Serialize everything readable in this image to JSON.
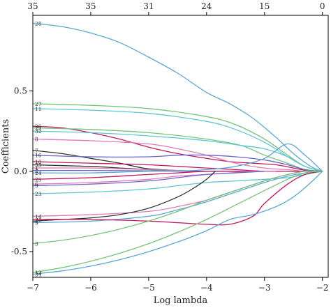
{
  "chart_data": {
    "type": "line",
    "xlabel": "Log lambda",
    "ylabel": "Coefficients",
    "xlim": [
      -7.0,
      -1.9
    ],
    "ylim": [
      -0.66,
      0.97
    ],
    "x_ticks": [
      -7,
      -6,
      -5,
      -4,
      -3,
      -2
    ],
    "y_ticks": [
      -0.5,
      0.0,
      0.5
    ],
    "y_tick_labels": [
      "-0.5",
      "0.0",
      "0.5"
    ],
    "top_axis": {
      "ticks": [
        -7,
        -6,
        -5,
        -4,
        -3,
        -2
      ],
      "labels": [
        "35",
        "35",
        "31",
        "24",
        "15",
        "0"
      ]
    },
    "grid": false,
    "legend": "none",
    "colors": [
      "#5aa7d6",
      "#74c476",
      "#e07ab8",
      "#5ec7d0",
      "#333333",
      "#c2185b",
      "#6a64c8"
    ],
    "series": [
      {
        "name": "28",
        "color": "#5aa7d6",
        "x": [
          -7,
          -6.5,
          -6,
          -5.5,
          -5,
          -4.5,
          -4,
          -3.6,
          -3.2,
          -2.8,
          -2.5,
          -2.2,
          -2.0
        ],
        "y": [
          0.92,
          0.9,
          0.86,
          0.8,
          0.71,
          0.61,
          0.49,
          0.42,
          0.33,
          0.21,
          0.11,
          0.03,
          0.0
        ]
      },
      {
        "name": "27",
        "color": "#74c476",
        "x": [
          -7,
          -6,
          -5,
          -4,
          -3.5,
          -3,
          -2.6,
          -2.3,
          -2.0
        ],
        "y": [
          0.42,
          0.41,
          0.39,
          0.34,
          0.29,
          0.2,
          0.1,
          0.03,
          0.0
        ]
      },
      {
        "name": "11",
        "color": "#5ec7d0",
        "x": [
          -7,
          -6,
          -5,
          -4,
          -3.5,
          -3,
          -2.6,
          -2.3,
          -2.0
        ],
        "y": [
          0.39,
          0.38,
          0.36,
          0.31,
          0.26,
          0.18,
          0.09,
          0.03,
          0.0
        ]
      },
      {
        "name": "26",
        "color": "#c2185b",
        "x": [
          -7,
          -6.5,
          -6,
          -5.5,
          -5,
          -4.5,
          -4,
          -3.6,
          -3.2,
          -2.8,
          -2.5,
          -2.2,
          -2.0
        ],
        "y": [
          0.28,
          0.27,
          0.24,
          0.2,
          0.15,
          0.11,
          0.08,
          0.06,
          0.05,
          0.04,
          0.02,
          0.0,
          0.0
        ]
      },
      {
        "name": "29",
        "color": "#74c476",
        "x": [
          -7,
          -6,
          -5,
          -4,
          -3.4,
          -3,
          -2.6,
          -2.3,
          -2.0
        ],
        "y": [
          0.27,
          0.26,
          0.24,
          0.2,
          0.16,
          0.1,
          0.05,
          0.01,
          0.0
        ]
      },
      {
        "name": "32",
        "color": "#5ec7d0",
        "x": [
          -7,
          -6,
          -5,
          -4,
          -3.4,
          -3,
          -2.6,
          -2.3,
          -2.0
        ],
        "y": [
          0.25,
          0.24,
          0.22,
          0.19,
          0.16,
          0.14,
          0.09,
          0.03,
          0.0
        ]
      },
      {
        "name": "8",
        "color": "#e07ab8",
        "x": [
          -7,
          -6,
          -5,
          -4.5,
          -4,
          -3.5,
          -3,
          -2.6,
          -2.3,
          -2.0
        ],
        "y": [
          0.2,
          0.19,
          0.17,
          0.14,
          0.1,
          0.05,
          0.02,
          0.01,
          0.0,
          0.0
        ]
      },
      {
        "name": "7",
        "color": "#333333",
        "x": [
          -7,
          -6.5,
          -6,
          -5.5,
          -5.1,
          -4.8,
          -4.5,
          -4.2,
          -4.0
        ],
        "y": [
          0.13,
          0.11,
          0.08,
          0.05,
          0.02,
          0.01,
          0.005,
          0.0,
          0.0
        ]
      },
      {
        "name": "16",
        "color": "#6a64c8",
        "x": [
          -7,
          -6,
          -5,
          -4.5,
          -4,
          -3.5,
          -3,
          -2.6,
          -2.3,
          -2.0
        ],
        "y": [
          0.1,
          0.09,
          0.09,
          0.1,
          0.1,
          0.09,
          0.07,
          0.04,
          0.01,
          0.0
        ]
      },
      {
        "name": "10",
        "color": "#c2185b",
        "x": [
          -7,
          -6,
          -5,
          -4,
          -3.5,
          -3,
          -2.5,
          -2.0
        ],
        "y": [
          0.06,
          0.05,
          0.04,
          0.02,
          0.01,
          0.0,
          0.0,
          0.0
        ]
      },
      {
        "name": "33",
        "color": "#333333",
        "x": [
          -7,
          -6,
          -5.5,
          -5,
          -4.7,
          -4.4,
          -4.0
        ],
        "y": [
          0.04,
          0.03,
          0.02,
          0.01,
          0.005,
          0.0,
          0.0
        ]
      },
      {
        "name": "1",
        "color": "#e07ab8",
        "x": [
          -7,
          -6,
          -5,
          -4.5,
          -4,
          -3.5,
          -3.0
        ],
        "y": [
          0.02,
          0.02,
          0.01,
          0.005,
          0.0,
          0.0,
          0.0
        ]
      },
      {
        "name": "2",
        "color": "#6a64c8",
        "x": [
          -7,
          -6,
          -5,
          -4.5,
          -4,
          -3.5
        ],
        "y": [
          0.005,
          0.005,
          0.003,
          0.0,
          0.0,
          0.0
        ]
      },
      {
        "name": "24",
        "color": "#5aa7d6",
        "x": [
          -7,
          -6,
          -5,
          -4.5,
          -4,
          -3.5,
          -3,
          -2.6,
          -2.3,
          -2.0
        ],
        "y": [
          -0.01,
          -0.01,
          0.0,
          0.0,
          0.01,
          0.03,
          0.08,
          0.17,
          0.1,
          0.0
        ]
      },
      {
        "name": "25",
        "color": "#c2185b",
        "x": [
          -7,
          -6,
          -5,
          -4.5,
          -4.0,
          -3.6,
          -3.2
        ],
        "y": [
          -0.05,
          -0.04,
          -0.02,
          -0.01,
          0.0,
          0.0,
          0.0
        ]
      },
      {
        "name": "6",
        "color": "#e07ab8",
        "x": [
          -7,
          -6,
          -5,
          -4.5,
          -4.0,
          -3.6,
          -3.2,
          -2.8
        ],
        "y": [
          -0.08,
          -0.07,
          -0.05,
          -0.03,
          -0.02,
          -0.01,
          0.0,
          0.0
        ]
      },
      {
        "name": "9",
        "color": "#6a64c8",
        "x": [
          -7,
          -6,
          -5,
          -4.5,
          -4.0,
          -3.5,
          -3.0
        ],
        "y": [
          -0.09,
          -0.08,
          -0.06,
          -0.04,
          -0.02,
          -0.01,
          0.0
        ]
      },
      {
        "name": "23",
        "color": "#5ec7d0",
        "x": [
          -7,
          -6,
          -5,
          -4.5,
          -4,
          -3.5,
          -3,
          -2.6,
          -2.3,
          -2.0
        ],
        "y": [
          -0.14,
          -0.13,
          -0.11,
          -0.09,
          -0.07,
          -0.06,
          -0.05,
          -0.04,
          -0.02,
          0.0
        ]
      },
      {
        "name": "14",
        "color": "#e07ab8",
        "x": [
          -7,
          -6,
          -5,
          -4.5,
          -4,
          -3.5,
          -3,
          -2.6,
          -2.3,
          -2.0
        ],
        "y": [
          -0.28,
          -0.27,
          -0.25,
          -0.22,
          -0.18,
          -0.12,
          -0.06,
          -0.02,
          0.0,
          0.0
        ]
      },
      {
        "name": "4",
        "color": "#333333",
        "x": [
          -7,
          -6.5,
          -6,
          -5.5,
          -5,
          -4.5,
          -4.2,
          -4.0,
          -3.85
        ],
        "y": [
          -0.31,
          -0.3,
          -0.29,
          -0.27,
          -0.23,
          -0.16,
          -0.1,
          -0.05,
          0.0
        ]
      },
      {
        "name": "5",
        "color": "#5aa7d6",
        "x": [
          -7,
          -6,
          -5,
          -4.5,
          -4,
          -3.5,
          -3,
          -2.6,
          -2.3,
          -2.0
        ],
        "y": [
          -0.32,
          -0.31,
          -0.28,
          -0.24,
          -0.19,
          -0.13,
          -0.07,
          -0.03,
          -0.01,
          0.0
        ]
      },
      {
        "name": "31",
        "color": "#c2185b",
        "x": [
          -7,
          -6,
          -5,
          -4.5,
          -4,
          -3.6,
          -3.2,
          -3.0,
          -2.6,
          -2.3,
          -2.0
        ],
        "y": [
          -0.3,
          -0.3,
          -0.31,
          -0.32,
          -0.33,
          -0.33,
          -0.28,
          -0.2,
          -0.08,
          -0.02,
          0.0
        ]
      },
      {
        "name": "3",
        "color": "#74c476",
        "x": [
          -7,
          -6.5,
          -6,
          -5.5,
          -5,
          -4.5,
          -4,
          -3.5,
          -3,
          -2.6,
          -2.3,
          -2.0
        ],
        "y": [
          -0.45,
          -0.43,
          -0.4,
          -0.36,
          -0.31,
          -0.25,
          -0.18,
          -0.12,
          -0.06,
          -0.02,
          0.0,
          0.0
        ]
      },
      {
        "name": "13",
        "color": "#74c476",
        "x": [
          -7,
          -6.5,
          -6,
          -5.5,
          -5,
          -4.5,
          -4,
          -3.5,
          -3,
          -2.6,
          -2.3,
          -2.0
        ],
        "y": [
          -0.63,
          -0.6,
          -0.56,
          -0.51,
          -0.45,
          -0.38,
          -0.3,
          -0.21,
          -0.12,
          -0.05,
          -0.01,
          0.0
        ]
      },
      {
        "name": "34",
        "color": "#5aa7d6",
        "x": [
          -7,
          -6.5,
          -6,
          -5.5,
          -5,
          -4.5,
          -4,
          -3.6,
          -3.2,
          -2.8,
          -2.5,
          -2.2,
          -2.0
        ],
        "y": [
          -0.64,
          -0.62,
          -0.59,
          -0.55,
          -0.5,
          -0.44,
          -0.37,
          -0.3,
          -0.27,
          -0.22,
          -0.16,
          -0.07,
          0.0
        ]
      }
    ]
  }
}
